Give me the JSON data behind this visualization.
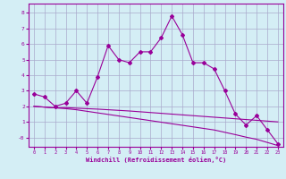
{
  "xlabel": "Windchill (Refroidissement éolien,°C)",
  "x": [
    0,
    1,
    2,
    3,
    4,
    5,
    6,
    7,
    8,
    9,
    10,
    11,
    12,
    13,
    14,
    15,
    16,
    17,
    18,
    19,
    20,
    21,
    22,
    23
  ],
  "line1": [
    2.8,
    2.6,
    2.0,
    2.2,
    3.0,
    2.2,
    3.9,
    5.9,
    5.0,
    4.8,
    5.5,
    5.5,
    6.4,
    7.8,
    6.6,
    4.8,
    4.8,
    4.4,
    3.0,
    1.5,
    0.8,
    1.4,
    0.5,
    -0.4
  ],
  "line2": [
    2.0,
    1.95,
    1.9,
    1.92,
    1.88,
    1.85,
    1.82,
    1.78,
    1.74,
    1.7,
    1.65,
    1.6,
    1.55,
    1.5,
    1.45,
    1.4,
    1.35,
    1.3,
    1.25,
    1.2,
    1.15,
    1.1,
    1.05,
    1.0
  ],
  "line3": [
    2.0,
    1.95,
    1.9,
    1.85,
    1.78,
    1.68,
    1.58,
    1.48,
    1.38,
    1.28,
    1.18,
    1.08,
    0.98,
    0.88,
    0.78,
    0.68,
    0.58,
    0.48,
    0.33,
    0.18,
    0.02,
    -0.12,
    -0.32,
    -0.52
  ],
  "line_color": "#990099",
  "bg_color": "#d4eef5",
  "grid_color": "#aaaacc",
  "ylim": [
    -0.6,
    8.6
  ],
  "xlim": [
    -0.5,
    23.5
  ],
  "yticks": [
    0,
    1,
    2,
    3,
    4,
    5,
    6,
    7,
    8
  ],
  "xticks": [
    0,
    1,
    2,
    3,
    4,
    5,
    6,
    7,
    8,
    9,
    10,
    11,
    12,
    13,
    14,
    15,
    16,
    17,
    18,
    19,
    20,
    21,
    22,
    23
  ]
}
